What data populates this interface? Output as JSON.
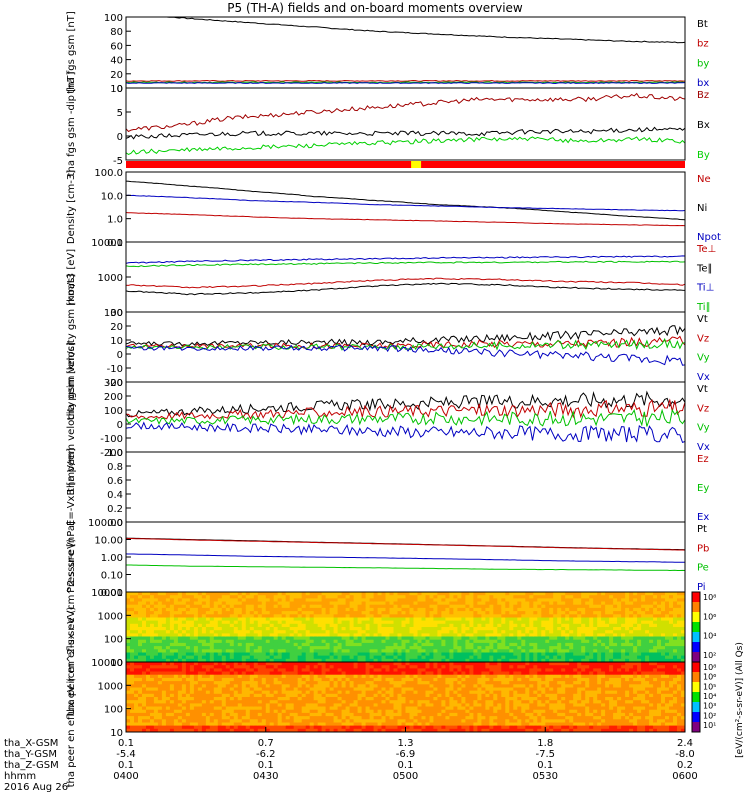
{
  "title": "P5 (TH-A) fields and on-board moments overview",
  "chart_data": [
    {
      "type": "line",
      "ylabel": "tha fgs gsm [nT]",
      "ylim": [
        0,
        100
      ],
      "yticks": [
        "100",
        "80",
        "60",
        "40",
        "20",
        "0"
      ],
      "series": [
        {
          "name": "Bt",
          "color": "#000000",
          "values": [
            105,
            98,
            92,
            86,
            80,
            76,
            72,
            69,
            66,
            64
          ]
        },
        {
          "name": "bz",
          "color": "#c00000",
          "values": [
            10,
            10,
            10,
            10,
            10,
            10,
            10,
            10,
            10,
            10
          ]
        },
        {
          "name": "by",
          "color": "#00c000",
          "values": [
            8,
            8,
            8,
            8,
            8,
            8,
            8,
            8,
            8,
            8
          ]
        },
        {
          "name": "bx",
          "color": "#0000c0",
          "values": [
            7,
            7,
            7,
            7,
            7,
            7,
            7,
            7,
            7,
            7
          ]
        }
      ]
    },
    {
      "type": "line",
      "ylabel": "tha fgs gsm -dip [nT]",
      "ylim": [
        -7,
        12
      ],
      "yticks": [
        "10",
        "5",
        "0",
        "-5"
      ],
      "series": [
        {
          "name": "Bz",
          "color": "#a00000",
          "values": [
            1,
            2,
            4,
            5,
            6,
            7,
            8,
            9,
            9,
            9,
            10,
            9
          ]
        },
        {
          "name": "Bx",
          "color": "#000000",
          "values": [
            -1,
            -0.5,
            0,
            0,
            0,
            0,
            0,
            0,
            0.5,
            0.5,
            1,
            1
          ]
        },
        {
          "name": "By",
          "color": "#00d000",
          "values": [
            -5,
            -4.5,
            -4,
            -3.5,
            -3,
            -2.5,
            -2,
            -1.5,
            -1.5,
            -2,
            -1.5,
            -2
          ]
        }
      ]
    },
    {
      "type": "line",
      "ylabel": "Density [cm-3]",
      "scale": "log",
      "ylim": [
        0.1,
        100
      ],
      "yticks": [
        "100.0",
        "10.0",
        "1.0",
        "0.1"
      ],
      "series": [
        {
          "name": "Ne",
          "color": "#c00000",
          "values": [
            1.8,
            1.5,
            1.2,
            1.0,
            0.9,
            0.8,
            0.7,
            0.6,
            0.55,
            0.5
          ]
        },
        {
          "name": "Ni",
          "color": "#000000",
          "values": [
            40,
            25,
            15,
            9,
            6,
            4,
            3,
            2,
            1.3,
            0.9
          ]
        },
        {
          "name": "Npot",
          "color": "#0000c0",
          "values": [
            10,
            8,
            6,
            5,
            4,
            3.5,
            3,
            2.7,
            2.4,
            2.2
          ]
        }
      ]
    },
    {
      "type": "line",
      "ylabel": "moat3 [eV]",
      "scale": "log",
      "ylim": [
        100,
        10000
      ],
      "yticks": [
        "10000",
        "1000",
        "100"
      ],
      "series": [
        {
          "name": "Te⊥",
          "color": "#c00000",
          "values": [
            600,
            500,
            550,
            650,
            800,
            900,
            850,
            750,
            700,
            600
          ]
        },
        {
          "name": "Te∥",
          "color": "#000000",
          "values": [
            400,
            320,
            350,
            420,
            550,
            650,
            600,
            500,
            450,
            420
          ]
        },
        {
          "name": "Ti⊥",
          "color": "#0000c0",
          "values": [
            2500,
            2800,
            3000,
            3200,
            3300,
            3500,
            3600,
            3700,
            3800,
            3900
          ]
        },
        {
          "name": "Ti∥",
          "color": "#00c000",
          "values": [
            2000,
            2200,
            2300,
            2400,
            2500,
            2600,
            2600,
            2700,
            2700,
            2800
          ]
        }
      ]
    },
    {
      "type": "line",
      "ylabel": "tha peim velocity gsm [km/s]",
      "ylim": [
        -30,
        30
      ],
      "yticks": [
        "30",
        "20",
        "10",
        "0",
        "-10",
        "-20"
      ],
      "series": [
        {
          "name": "Vt",
          "color": "#000000",
          "values": [
            3,
            3,
            4,
            4,
            4,
            6,
            8,
            10,
            12,
            15
          ]
        },
        {
          "name": "Vz",
          "color": "#c00000",
          "values": [
            1,
            1,
            1,
            1,
            1,
            2,
            3,
            3,
            4,
            5
          ]
        },
        {
          "name": "Vy",
          "color": "#00c000",
          "values": [
            0,
            0,
            0,
            0,
            0,
            1,
            1,
            2,
            2,
            3
          ]
        },
        {
          "name": "Vx",
          "color": "#0000c0",
          "values": [
            -1,
            -1,
            -1,
            -1,
            -1,
            -3,
            -5,
            -7,
            -9,
            -12
          ]
        }
      ]
    },
    {
      "type": "line",
      "ylabel": "tha peem velocity gsm [km/s]",
      "ylim": [
        -200,
        300
      ],
      "yticks": [
        "300",
        "200",
        "100",
        "0",
        "-100",
        "-200"
      ],
      "series": [
        {
          "name": "Vt",
          "color": "#000000",
          "values": [
            70,
            90,
            110,
            130,
            140,
            150,
            160,
            170,
            170,
            180
          ]
        },
        {
          "name": "Vz",
          "color": "#c00000",
          "values": [
            50,
            60,
            70,
            80,
            90,
            95,
            100,
            105,
            110,
            110
          ]
        },
        {
          "name": "Vy",
          "color": "#00c000",
          "values": [
            20,
            25,
            30,
            35,
            40,
            40,
            40,
            40,
            40,
            40
          ]
        },
        {
          "name": "Vx",
          "color": "#0000c0",
          "values": [
            -10,
            -20,
            -30,
            -40,
            -50,
            -60,
            -60,
            -70,
            -70,
            -80
          ]
        }
      ]
    },
    {
      "type": "line",
      "ylabel": "E=-VxB [mV/m]",
      "ylim": [
        0,
        1
      ],
      "yticks": [
        "1.0",
        "0.8",
        "0.6",
        "0.4",
        "0.2",
        "0.0"
      ],
      "series": [
        {
          "name": "Ez",
          "color": "#c00000",
          "values": []
        },
        {
          "name": "Ey",
          "color": "#00c000",
          "values": []
        },
        {
          "name": "Ex",
          "color": "#0000c0",
          "values": []
        }
      ]
    },
    {
      "type": "line",
      "ylabel": "Pressure [nPa]",
      "scale": "log",
      "ylim": [
        0.01,
        100
      ],
      "yticks": [
        "100.00",
        "10.00",
        "1.00",
        "0.10",
        "0.01"
      ],
      "series": [
        {
          "name": "Pt",
          "color": "#000000",
          "values": [
            12,
            10,
            8.5,
            7,
            6,
            5,
            4.2,
            3.5,
            3,
            2.6
          ]
        },
        {
          "name": "Pb",
          "color": "#c00000",
          "values": [
            11.5,
            9.5,
            8,
            6.8,
            5.8,
            4.9,
            4.1,
            3.4,
            2.9,
            2.5
          ]
        },
        {
          "name": "Pe",
          "color": "#00c000",
          "values": [
            0.35,
            0.3,
            0.28,
            0.26,
            0.24,
            0.22,
            0.2,
            0.19,
            0.18,
            0.17
          ]
        },
        {
          "name": "Pi",
          "color": "#0000c0",
          "values": [
            1.5,
            1.3,
            1.1,
            1.0,
            0.9,
            0.8,
            0.7,
            0.6,
            0.55,
            0.5
          ]
        }
      ]
    },
    {
      "type": "heatmap",
      "ylabel": "tha peir en eflux eV (cm^2-s-sr-eV)",
      "scale": "log",
      "ylim": [
        8,
        20000
      ],
      "yticks": [
        "10000",
        "1000",
        "100",
        "10"
      ]
    },
    {
      "type": "heatmap",
      "ylabel": "tha peer en eflux eV (cm^2-s-sr-eV)",
      "scale": "log",
      "ylim": [
        8,
        20000
      ],
      "yticks": [
        "10000",
        "1000",
        "100",
        "10"
      ]
    }
  ],
  "colorbar": {
    "label": "[eV/(cm²-s-sr-eV)] (All Qs)",
    "ticks_upper": [
      "10⁸",
      "10⁶",
      "10⁴",
      "10²"
    ],
    "ticks_lower": [
      "10⁸",
      "10⁶",
      "10⁵",
      "10⁴",
      "10³",
      "10²",
      "10¹"
    ]
  },
  "x_axis": {
    "labels": [
      "tha_X-GSM",
      "tha_Y-GSM",
      "tha_Z-GSM",
      "hhmm",
      "2016 Aug 26"
    ],
    "columns": [
      {
        "x": "0.1",
        "y": "-5.4",
        "z": "0.1",
        "t": "0400"
      },
      {
        "x": "0.7",
        "y": "-6.2",
        "z": "0.1",
        "t": "0430"
      },
      {
        "x": "1.3",
        "y": "-6.9",
        "z": "0.1",
        "t": "0500"
      },
      {
        "x": "1.8",
        "y": "-7.5",
        "z": "0.1",
        "t": "0530"
      },
      {
        "x": "2.4",
        "y": "-8.0",
        "z": "0.2",
        "t": "0600"
      }
    ]
  },
  "colors": {
    "axis": "#000000",
    "background": "#ffffff"
  }
}
